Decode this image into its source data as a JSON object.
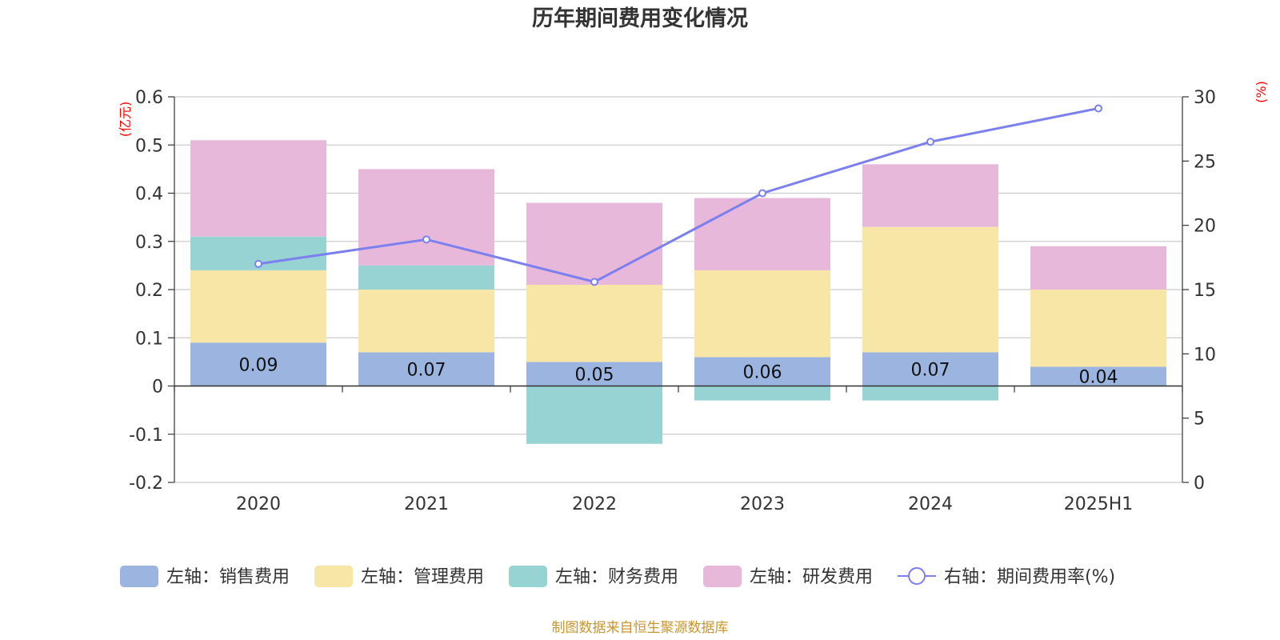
{
  "title": "历年期间费用变化情况",
  "source_note": "制图数据来自恒生聚源数据库",
  "chart_data": {
    "type": "bar",
    "stacked": true,
    "title": "历年期间费用变化情况",
    "categories": [
      "2020",
      "2021",
      "2022",
      "2023",
      "2024",
      "2025H1"
    ],
    "left_axis": {
      "unit": "(亿元)",
      "ylim": [
        -0.2,
        0.6
      ],
      "ticks": [
        -0.2,
        -0.1,
        0,
        0.1,
        0.2,
        0.3,
        0.4,
        0.5,
        0.6
      ],
      "tick_labels": [
        "-0.2",
        "-0.1",
        "0",
        "0.1",
        "0.2",
        "0.3",
        "0.4",
        "0.5",
        "0.6"
      ]
    },
    "right_axis": {
      "unit": "(%)",
      "ylim": [
        0,
        30
      ],
      "ticks": [
        0,
        5,
        10,
        15,
        20,
        25,
        30
      ],
      "tick_labels": [
        "0",
        "5",
        "10",
        "15",
        "20",
        "25",
        "30"
      ]
    },
    "series": [
      {
        "name": "左轴：销售费用",
        "axis": "left",
        "kind": "bar",
        "color": "#9bb5e0",
        "values": [
          0.09,
          0.07,
          0.05,
          0.06,
          0.07,
          0.04
        ],
        "data_labels": [
          "0.09",
          "0.07",
          "0.05",
          "0.06",
          "0.07",
          "0.04"
        ]
      },
      {
        "name": "左轴：管理费用",
        "axis": "left",
        "kind": "bar",
        "color": "#f7e6a6",
        "values": [
          0.15,
          0.13,
          0.16,
          0.18,
          0.26,
          0.16
        ]
      },
      {
        "name": "左轴：财务费用",
        "axis": "left",
        "kind": "bar",
        "color": "#98d3d3",
        "values": [
          0.07,
          0.05,
          -0.12,
          -0.03,
          -0.03,
          0
        ]
      },
      {
        "name": "左轴：研发费用",
        "axis": "left",
        "kind": "bar",
        "color": "#e7b8da",
        "values": [
          0.2,
          0.2,
          0.17,
          0.15,
          0.13,
          0.09
        ]
      },
      {
        "name": "右轴：期间费用率(%)",
        "axis": "right",
        "kind": "line",
        "color": "#7b80ee",
        "values": [
          17.0,
          18.9,
          15.6,
          22.5,
          26.5,
          29.1
        ]
      }
    ],
    "legend_position": "bottom",
    "grid": true
  }
}
